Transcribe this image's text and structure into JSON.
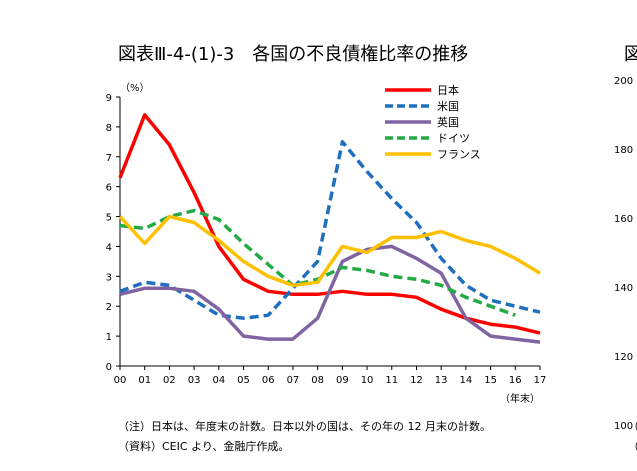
{
  "chart_data": {
    "type": "line",
    "title": "図表Ⅲ-4-(1)-3　各国の不良債権比率の推移",
    "y_unit_label": "（%）",
    "x_unit_label": "（年末）",
    "ylim": [
      0,
      9
    ],
    "y_ticks": [
      "0",
      "1",
      "2",
      "3",
      "4",
      "5",
      "6",
      "7",
      "8",
      "9"
    ],
    "categories": [
      "00",
      "01",
      "02",
      "03",
      "04",
      "05",
      "06",
      "07",
      "08",
      "09",
      "10",
      "11",
      "12",
      "13",
      "14",
      "15",
      "16",
      "17"
    ],
    "grid": false,
    "legend_position": "top-right",
    "series": [
      {
        "name": "日本",
        "color": "#ff0000",
        "dash": "solid",
        "values": [
          6.3,
          8.4,
          7.4,
          5.8,
          4.0,
          2.9,
          2.5,
          2.4,
          2.4,
          2.5,
          2.4,
          2.4,
          2.3,
          1.9,
          1.6,
          1.4,
          1.3,
          1.1
        ]
      },
      {
        "name": "米国",
        "color": "#1f6fbf",
        "dash": "dashed",
        "values": [
          2.5,
          2.8,
          2.7,
          2.2,
          1.7,
          1.6,
          1.7,
          2.6,
          3.5,
          7.5,
          6.5,
          5.6,
          4.8,
          3.6,
          2.7,
          2.2,
          2.0,
          1.8
        ]
      },
      {
        "name": "英国",
        "color": "#8064a2",
        "dash": "solid",
        "values": [
          2.4,
          2.6,
          2.6,
          2.5,
          1.9,
          1.0,
          0.9,
          0.9,
          1.6,
          3.5,
          3.9,
          4.0,
          3.6,
          3.1,
          1.6,
          1.0,
          0.9,
          0.8
        ]
      },
      {
        "name": "ドイツ",
        "color": "#22aa44",
        "dash": "dashed",
        "values": [
          4.7,
          4.6,
          5.0,
          5.2,
          4.9,
          4.1,
          3.4,
          2.7,
          2.9,
          3.3,
          3.2,
          3.0,
          2.9,
          2.7,
          2.3,
          2.0,
          1.7,
          null
        ]
      },
      {
        "name": "フランス",
        "color": "#ffc000",
        "dash": "solid",
        "values": [
          5.0,
          4.1,
          5.0,
          4.8,
          4.2,
          3.5,
          3.0,
          2.7,
          2.8,
          4.0,
          3.8,
          4.3,
          4.3,
          4.5,
          4.2,
          4.0,
          3.6,
          3.1
        ]
      }
    ]
  },
  "notes": [
    "（注）日本は、年度末の計数。日本以外の国は、その年の 12 月末の計数。",
    "（資料）CEIC より、金融庁作成。"
  ],
  "right_cutoff": {
    "title_fragment": "図",
    "y_ticks": [
      "200",
      "180",
      "160",
      "140",
      "120",
      "100"
    ],
    "note_fragments": [
      "（",
      "（"
    ]
  }
}
